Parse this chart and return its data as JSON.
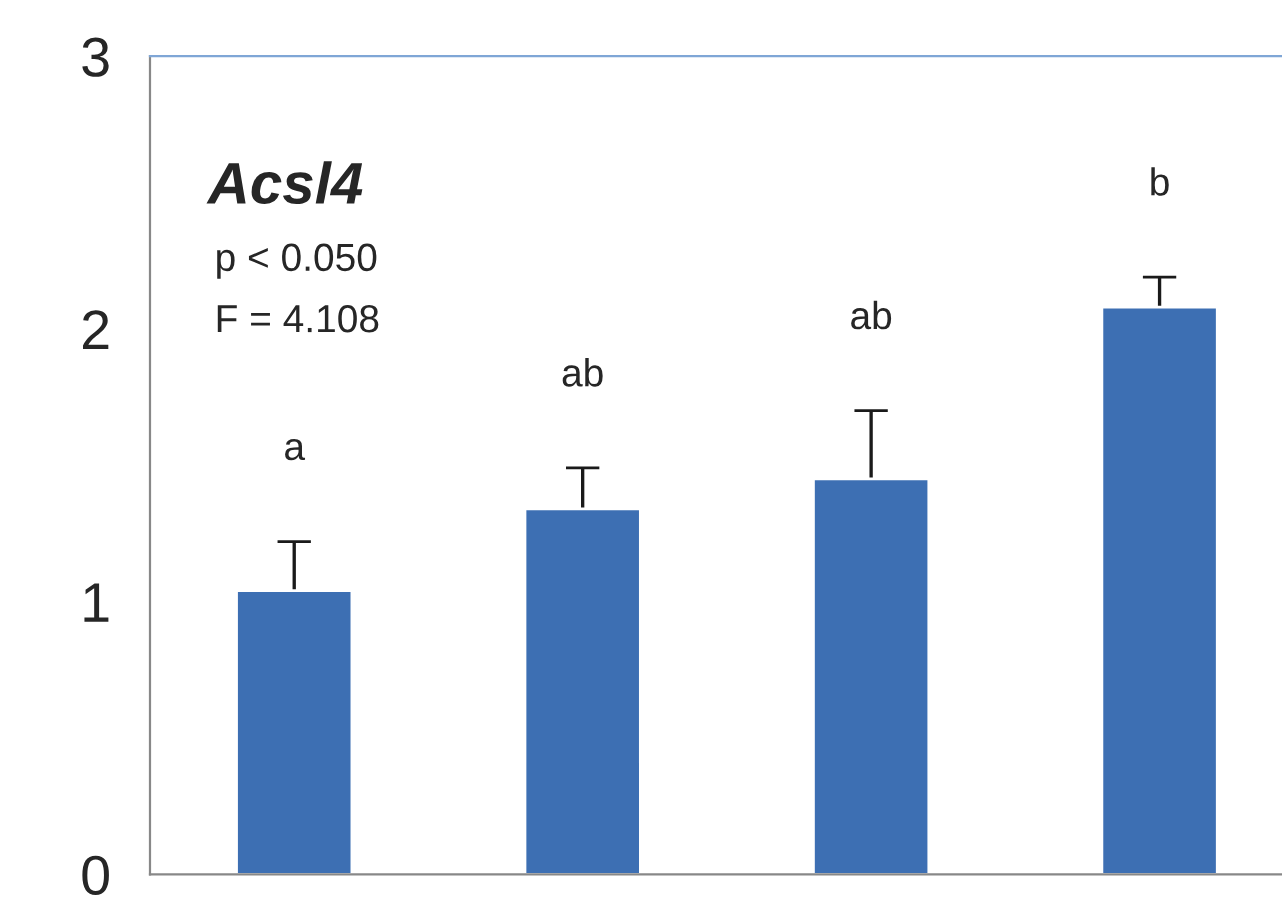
{
  "chart_data": {
    "type": "bar",
    "title": "Acsl4",
    "categories": [
      null,
      null,
      null,
      null
    ],
    "values": [
      1.04,
      1.34,
      1.45,
      2.08
    ],
    "errors": [
      0.18,
      0.15,
      0.25,
      0.11
    ],
    "color": "#3d6fb3",
    "ylim": [
      0,
      3
    ],
    "yticks": [
      0,
      1,
      2,
      3
    ],
    "grid": false,
    "annotations": [
      "a",
      "ab",
      "ab",
      "b",
      "p < 0.050",
      "F = 4.108"
    ]
  }
}
